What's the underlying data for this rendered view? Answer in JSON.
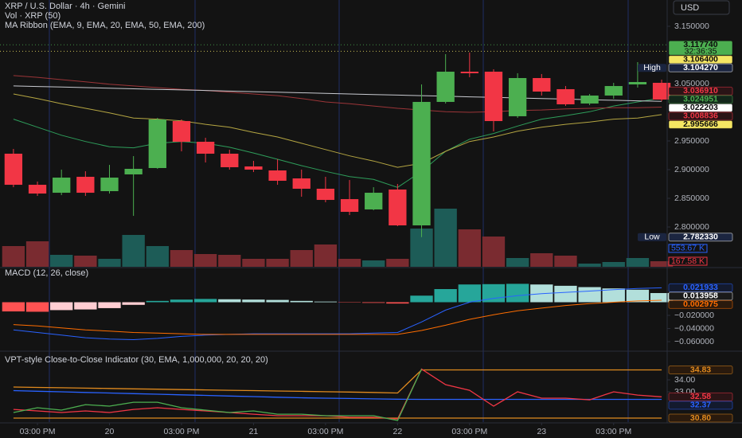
{
  "header": {
    "title": "XRP / U.S. Dollar · 4h · Gemini",
    "currency": "USD"
  },
  "chart_data": [
    {
      "type": "candlestick",
      "indicators": [
        "Vol · XRP (50)",
        "MA Ribbon (EMA, 9, EMA, 20, EMA, 50, EMA, 200)"
      ],
      "x": [
        0,
        1,
        2,
        3,
        4,
        5,
        6,
        7,
        8,
        9,
        10,
        11,
        12,
        13,
        14,
        15,
        16,
        17,
        18,
        19,
        20,
        21,
        22,
        23,
        24,
        25,
        26,
        27
      ],
      "xlim": [
        -0.56,
        27.23
      ],
      "xticks": [
        {
          "value": 1,
          "label": "03:00 PM"
        },
        {
          "value": 4,
          "label": "20"
        },
        {
          "value": 7,
          "label": "03:00 PM"
        },
        {
          "value": 10,
          "label": "21"
        },
        {
          "value": 13,
          "label": "03:00 PM"
        },
        {
          "value": 16,
          "label": "22"
        },
        {
          "value": 19,
          "label": "03:00 PM"
        },
        {
          "value": 22,
          "label": "23"
        },
        {
          "value": 25,
          "label": "03:00 PM"
        }
      ],
      "open": [
        2.9278,
        2.8736,
        2.8597,
        2.8875,
        2.8625,
        2.8917,
        2.9028,
        2.9847,
        2.9486,
        2.9278,
        2.9056,
        2.8986,
        2.8847,
        2.8667,
        2.8486,
        2.8306,
        2.8653,
        2.8028,
        3.0181,
        3.0708,
        3.0708,
        2.9931,
        3.0597,
        3.0403,
        3.0153,
        3.0292,
        3.0486,
        3.0514
      ],
      "high": [
        2.9361,
        2.8792,
        2.9,
        2.8972,
        2.9083,
        2.9236,
        2.9903,
        2.9875,
        2.9556,
        2.9347,
        2.9153,
        2.9181,
        2.9,
        2.8875,
        2.8819,
        2.8694,
        2.875,
        3.0486,
        3.1014,
        3.1043,
        3.075,
        3.0681,
        3.0667,
        3.0458,
        3.0319,
        3.0514,
        3.0875,
        3.0569
      ],
      "low": [
        2.8694,
        2.8542,
        2.8556,
        2.8542,
        2.8583,
        2.8194,
        2.9014,
        2.9319,
        2.9125,
        2.9,
        2.8958,
        2.8736,
        2.8528,
        2.8431,
        2.8208,
        2.8292,
        2.8014,
        2.7823,
        3.0153,
        3.0611,
        2.9667,
        2.9903,
        3.0292,
        3.0111,
        3.0125,
        3.0236,
        3.0431,
        3.0195
      ],
      "close": [
        2.8736,
        2.8583,
        2.8861,
        2.8597,
        2.8861,
        2.9014,
        2.9875,
        2.9486,
        2.9278,
        2.9042,
        2.9,
        2.8806,
        2.8667,
        2.8472,
        2.8264,
        2.8597,
        2.8028,
        3.0181,
        3.0708,
        3.0681,
        2.9847,
        3.0597,
        3.0361,
        3.0139,
        3.0292,
        3.0458,
        3.0528,
        3.0222
      ],
      "up_color": "#4caf50",
      "down_color": "#f23645",
      "ylim": [
        2.7306,
        3.1958
      ],
      "yticks": [
        {
          "value": 3.15,
          "label": "3.150000"
        },
        {
          "value": 3.05,
          "label": "3.050000"
        },
        {
          "value": 2.95,
          "label": "2.950000"
        },
        {
          "value": 2.9,
          "label": "2.900000"
        },
        {
          "value": 2.85,
          "label": "2.850000"
        },
        {
          "value": 2.8,
          "label": "2.800000"
        }
      ],
      "series": [
        {
          "color": "#2e9e5b",
          "values": [
            2.988,
            2.974,
            2.96,
            2.949,
            2.94,
            2.938,
            2.946,
            2.949,
            2.946,
            2.939,
            2.929,
            2.918,
            2.907,
            2.897,
            2.888,
            2.883,
            2.869,
            2.897,
            2.932,
            2.953,
            2.963,
            2.976,
            2.988,
            2.994,
            3.001,
            3.011,
            3.018,
            3.025
          ]
        },
        {
          "color": "#b5a642",
          "values": [
            3.032,
            3.024,
            3.015,
            3.007,
            2.999,
            2.99,
            2.988,
            2.985,
            2.979,
            2.974,
            2.965,
            2.957,
            2.946,
            2.935,
            2.924,
            2.915,
            2.904,
            2.911,
            2.932,
            2.949,
            2.957,
            2.967,
            2.974,
            2.979,
            2.983,
            2.988,
            2.99,
            2.996
          ]
        },
        {
          "color": "#9c3538",
          "values": [
            3.064,
            3.061,
            3.057,
            3.053,
            3.049,
            3.046,
            3.043,
            3.04,
            3.038,
            3.035,
            3.032,
            3.029,
            3.024,
            3.018,
            3.015,
            3.011,
            3.007,
            3.004,
            3.001,
            3.0,
            3.001,
            3.003,
            3.004,
            3.006,
            3.007,
            3.008,
            3.008,
            3.009
          ]
        },
        {
          "color": "#c8cad0",
          "values": [
            3.046,
            3.045,
            3.044,
            3.043,
            3.042,
            3.041,
            3.04,
            3.039,
            3.038,
            3.037,
            3.036,
            3.035,
            3.034,
            3.033,
            3.032,
            3.031,
            3.03,
            3.029,
            3.028,
            3.027,
            3.026,
            3.025,
            3.024,
            3.023,
            3.022,
            3.021,
            3.02,
            3.019
          ]
        }
      ],
      "volume": {
        "values": [
          624,
          768,
          360,
          336,
          240,
          960,
          624,
          504,
          384,
          360,
          240,
          240,
          504,
          672,
          240,
          192,
          240,
          1152,
          1752,
          1128,
          912,
          264,
          408,
          336,
          96,
          144,
          264,
          167.58
        ],
        "ylim": [
          0,
          8040
        ],
        "up_color": "#1d5c57",
        "down_color": "#7a2b30",
        "labels": [
          {
            "value": 553.67,
            "label": "553.67 K",
            "color": "#2962ff"
          },
          {
            "value": 167.58,
            "label": "167.58 K",
            "color": "#f23645"
          }
        ]
      },
      "badges": [
        {
          "value": 3.11774,
          "label": "3.117740",
          "sub": "32:36:35",
          "bg": "#4caf50",
          "fg": "#0b0b0b",
          "dotted": true
        },
        {
          "value": 3.1064,
          "label": "3.106400",
          "bg": "#f5e663",
          "fg": "#0b0b0b",
          "dotted": true
        },
        {
          "value": 3.10427,
          "label": "3.104270",
          "tag": "High",
          "bg": "#1b2540",
          "fg": "#ffffff"
        },
        {
          "value": 3.03691,
          "label": "3.036910",
          "bg": "#2a1416",
          "fg": "#f23645"
        },
        {
          "value": 3.024951,
          "label": "3.024951",
          "bg": "#13261a",
          "fg": "#4caf50"
        },
        {
          "value": 3.022203,
          "label": "3.022203",
          "bg": "#ffffff",
          "fg": "#0b0b0b"
        },
        {
          "value": 3.008836,
          "label": "3.008836",
          "bg": "#2a1416",
          "fg": "#f23645"
        },
        {
          "value": 2.995666,
          "label": "2.995666",
          "bg": "#f5e663",
          "fg": "#0b0b0b"
        },
        {
          "value": 2.78233,
          "label": "2.782330",
          "tag": "Low",
          "bg": "#1b2540",
          "fg": "#ffffff"
        }
      ]
    },
    {
      "type": "macd",
      "title": "MACD (12, 26, close)",
      "histogram": [
        -0.014,
        -0.0145,
        -0.012,
        -0.011,
        -0.009,
        -0.004,
        0.002,
        0.004,
        0.005,
        0.0045,
        0.004,
        0.0035,
        0.002,
        0.001,
        -0.0005,
        -0.001,
        -0.002,
        0.01,
        0.02,
        0.027,
        0.0275,
        0.028,
        0.027,
        0.025,
        0.023,
        0.021,
        0.019,
        0.013958
      ],
      "hist_colors": {
        "up_grow": "#26a69a",
        "up_fall": "#b2dfdb",
        "down_grow": "#ff5252",
        "down_fall": "#ffcdd2"
      },
      "series": [
        {
          "color": "#2962ff",
          "values": [
            -0.042,
            -0.046,
            -0.05,
            -0.054,
            -0.056,
            -0.057,
            -0.055,
            -0.052,
            -0.05,
            -0.049,
            -0.048,
            -0.048,
            -0.048,
            -0.048,
            -0.048,
            -0.047,
            -0.046,
            -0.03,
            -0.012,
            0.0,
            0.006,
            0.01,
            0.013,
            0.015,
            0.017,
            0.019,
            0.021,
            0.021933
          ]
        },
        {
          "color": "#ff6d00",
          "values": [
            -0.034,
            -0.036,
            -0.039,
            -0.042,
            -0.044,
            -0.046,
            -0.047,
            -0.048,
            -0.049,
            -0.049,
            -0.049,
            -0.049,
            -0.049,
            -0.049,
            -0.049,
            -0.049,
            -0.049,
            -0.043,
            -0.035,
            -0.026,
            -0.019,
            -0.013,
            -0.009,
            -0.005,
            -0.002,
            0.0,
            0.002,
            0.002975
          ]
        }
      ],
      "ylim": [
        -0.0733,
        0.0515
      ],
      "yticks": [
        {
          "value": -0.02,
          "label": "−0.020000"
        },
        {
          "value": -0.04,
          "label": "−0.040000"
        },
        {
          "value": -0.06,
          "label": "−0.060000"
        }
      ],
      "badges": [
        {
          "value": 0.021933,
          "label": "0.021933",
          "bg": "#131a2e",
          "fg": "#2962ff"
        },
        {
          "value": 0.013958,
          "label": "0.013958",
          "bg": "#1a1a1a",
          "fg": "#ffffff"
        },
        {
          "value": 0.002975,
          "label": "0.002975",
          "bg": "#2a1a0d",
          "fg": "#ff6d00"
        }
      ]
    },
    {
      "type": "line",
      "title": "VPT-style Close-to-Close Indicator (30, EMA, 1,000,000, 20, 20, 20)",
      "series": [
        {
          "color": "#e08a1e",
          "values": [
            33.4,
            33.37,
            33.34,
            33.31,
            33.28,
            33.25,
            33.22,
            33.19,
            33.16,
            33.13,
            33.1,
            33.07,
            33.04,
            33.01,
            32.98,
            32.95,
            32.9,
            34.83,
            34.83,
            34.83,
            34.83,
            34.83,
            34.83,
            34.83,
            34.83,
            34.83,
            34.83,
            34.83
          ]
        },
        {
          "color": "#e08a1e",
          "values": [
            30.8,
            30.8,
            30.8,
            30.8,
            30.8,
            30.8,
            30.8,
            30.8,
            30.8,
            30.8,
            30.8,
            30.8,
            30.8,
            30.8,
            30.8,
            30.8,
            30.8,
            30.8,
            30.8,
            30.8,
            30.8,
            30.8,
            30.8,
            30.8,
            30.8,
            30.8,
            30.8,
            30.8
          ]
        },
        {
          "color": "#2962ff",
          "values": [
            33.1,
            33.05,
            33.0,
            32.95,
            32.9,
            32.85,
            32.8,
            32.75,
            32.7,
            32.65,
            32.6,
            32.55,
            32.5,
            32.47,
            32.44,
            32.41,
            32.38,
            32.37,
            32.37,
            32.37,
            32.37,
            32.37,
            32.37,
            32.37,
            32.37,
            32.37,
            32.37,
            32.37
          ]
        },
        {
          "color": "#f23645",
          "values": [
            31.53,
            31.4,
            31.27,
            31.4,
            31.27,
            31.53,
            31.67,
            31.53,
            31.4,
            31.27,
            31.13,
            31.0,
            31.0,
            31.0,
            30.87,
            30.87,
            30.73,
            34.9,
            33.6,
            33.13,
            31.8,
            33.0,
            32.47,
            32.47,
            32.33,
            33.0,
            32.73,
            32.58
          ]
        },
        {
          "color": "#4caf50",
          "values": [
            31.27,
            31.67,
            31.47,
            31.93,
            31.8,
            32.13,
            32.13,
            31.67,
            31.47,
            31.27,
            31.4,
            31.13,
            31.13,
            31.0,
            31.0,
            31.0,
            30.6,
            34.9,
            null,
            null,
            null,
            null,
            null,
            null,
            null,
            null,
            null,
            null
          ]
        }
      ],
      "ylim": [
        30.47,
        36.33
      ],
      "yticks": [
        {
          "value": 34,
          "label": "34.00"
        },
        {
          "value": 33,
          "label": "33.00"
        }
      ],
      "badges": [
        {
          "value": 34.83,
          "label": "34.83",
          "bg": "#2a1a0d",
          "fg": "#e08a1e"
        },
        {
          "value": 32.58,
          "label": "32.58",
          "bg": "#2a1416",
          "fg": "#f23645"
        },
        {
          "value": 32.37,
          "label": "32.37",
          "bg": "#131a2e",
          "fg": "#2962ff"
        },
        {
          "value": 30.8,
          "label": "30.80",
          "bg": "#2a1a0d",
          "fg": "#e08a1e"
        }
      ]
    }
  ]
}
